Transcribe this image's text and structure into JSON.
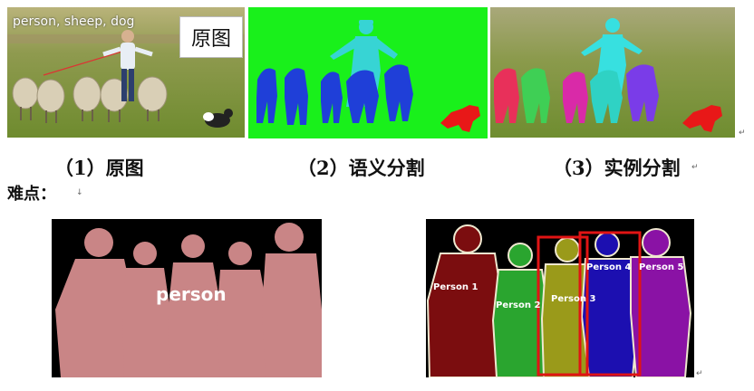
{
  "figure1": {
    "original_tag": "person, sheep, dog",
    "original_label": "原图",
    "captions": [
      "（1）原图",
      "（2）语义分割",
      "（3）实例分割"
    ]
  },
  "heading": "难点：",
  "figure2": {
    "semantic_label": "person",
    "instance_labels": [
      "Person 1",
      "Person 2",
      "Person 3",
      "Person 4",
      "Person 5"
    ]
  },
  "colors": {
    "sheep_semantic": "#1f3fd8",
    "person_semantic": "#37d4d4",
    "dog": "#e81818",
    "green_bg": "#19f01b",
    "person_mask": "#c98586",
    "instance": [
      "#7b0d0f",
      "#2aa52f",
      "#9a9a1a",
      "#1c0fb0",
      "#8a12a5"
    ]
  }
}
